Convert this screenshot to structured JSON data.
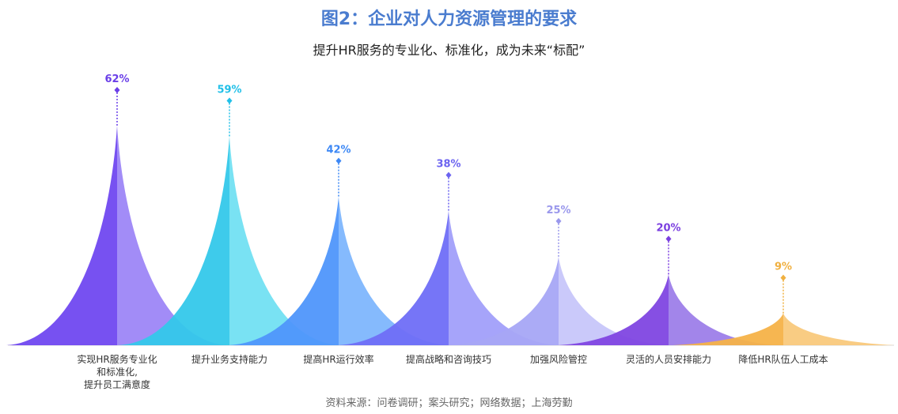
{
  "chart_data": {
    "type": "area",
    "title": "图2：企业对人力资源管理的要求",
    "subtitle": "提升HR服务的专业化、标准化，成为未来“标配”",
    "source": "资料来源：问卷调研；案头研究；网络数据；上海劳勤",
    "categories": [
      [
        "实现HR服务专业化",
        "和标准化,",
        "提升员工满意度"
      ],
      [
        "提升业务支持能力"
      ],
      [
        "提高HR运行效率"
      ],
      [
        "提高战略和咨询技巧"
      ],
      [
        "加强风险管控"
      ],
      [
        "灵活的人员安排能力"
      ],
      [
        "降低HR队伍人工成本"
      ]
    ],
    "values": [
      62,
      59,
      42,
      38,
      25,
      20,
      9
    ],
    "value_labels": [
      "62%",
      "59%",
      "42%",
      "38%",
      "25%",
      "20%",
      "9%"
    ],
    "colors": [
      {
        "left": "#7048f0",
        "right": "#9a82f6",
        "label": "#6a3fe8"
      },
      {
        "left": "#34c8ea",
        "right": "#6ee0f2",
        "label": "#22c0e8"
      },
      {
        "left": "#4f96fb",
        "right": "#7bb4fd",
        "label": "#3d88f5"
      },
      {
        "left": "#6f6ef7",
        "right": "#9e9cfa",
        "label": "#6b63f0"
      },
      {
        "left": "#a7a6f6",
        "right": "#c5c4fa",
        "label": "#9a98ec"
      },
      {
        "left": "#7f46e2",
        "right": "#9a7be8",
        "label": "#7b3fe0"
      },
      {
        "left": "#f5b248",
        "right": "#f8c878",
        "label": "#f0b040"
      }
    ],
    "ylim": [
      0,
      62
    ]
  }
}
